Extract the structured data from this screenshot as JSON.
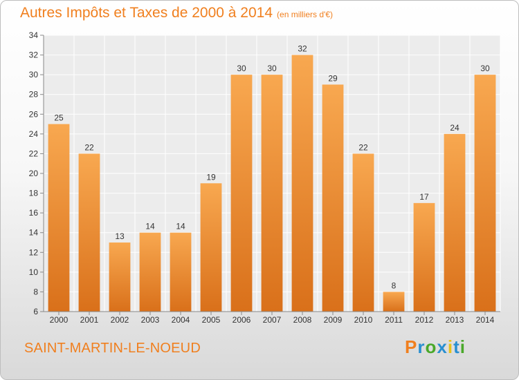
{
  "chart_data": {
    "type": "bar",
    "title": "Autres Impôts et Taxes de 2000 à 2014",
    "subtitle": "(en milliers d'€)",
    "categories": [
      "2000",
      "2001",
      "2002",
      "2003",
      "2004",
      "2005",
      "2006",
      "2007",
      "2008",
      "2009",
      "2010",
      "2011",
      "2012",
      "2013",
      "2014"
    ],
    "values": [
      25,
      22,
      13,
      14,
      14,
      19,
      30,
      30,
      32,
      29,
      22,
      8,
      17,
      24,
      30
    ],
    "ylim": [
      6,
      34
    ],
    "yticks": [
      6,
      8,
      10,
      12,
      14,
      16,
      18,
      20,
      22,
      24,
      26,
      28,
      30,
      32,
      34
    ],
    "grid": true,
    "bar_color": "#f07f1e"
  },
  "location": "SAINT-MARTIN-LE-NOEUD",
  "logo": {
    "letters": [
      "P",
      "r",
      "o",
      "x",
      "i",
      "t",
      "i"
    ],
    "colors": [
      "#f07f1e",
      "#2a8fd0",
      "#4aa82a",
      "#2a8fd0",
      "#e8c21a",
      "#2a8fd0",
      "#4aa82a"
    ]
  }
}
